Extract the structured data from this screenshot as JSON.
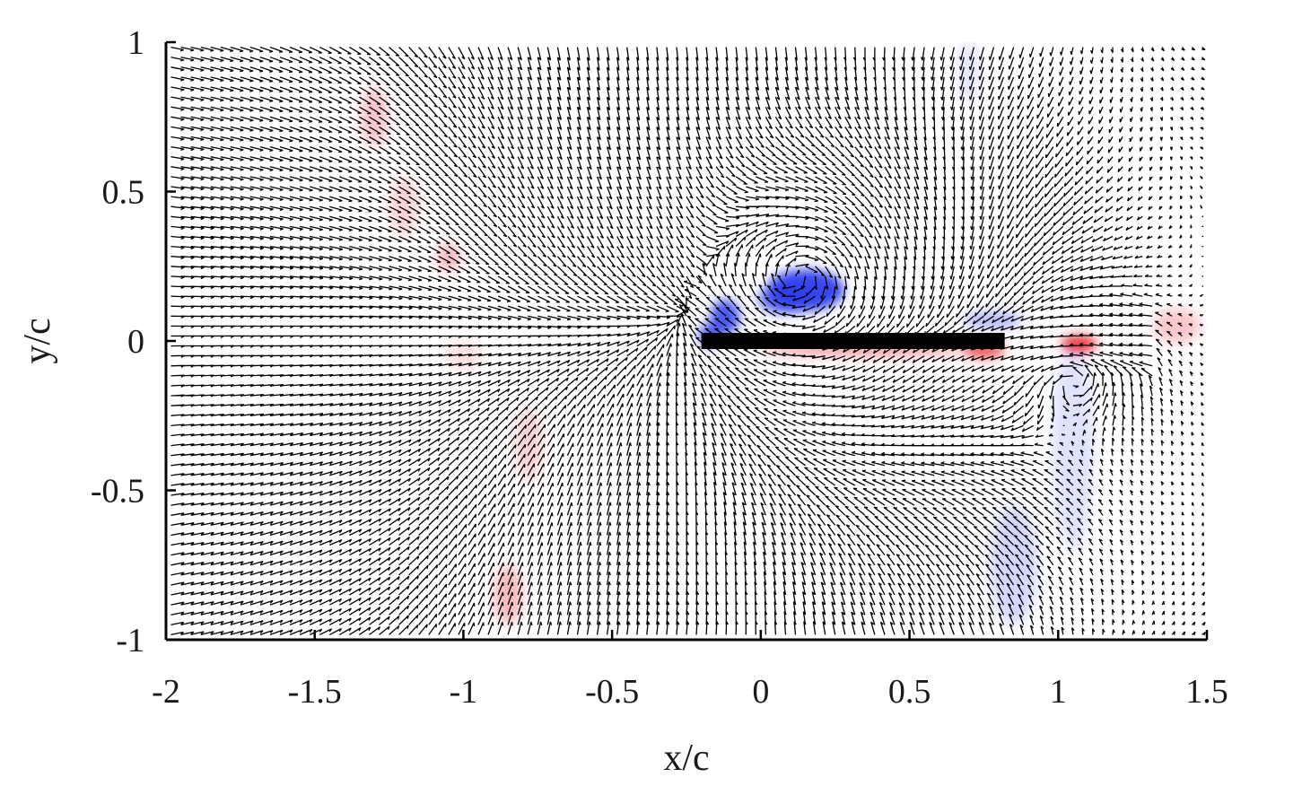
{
  "chart_data": {
    "type": "vector-field",
    "title": "",
    "xlabel": "x/c",
    "ylabel": "y/c",
    "xlim": [
      -2,
      1.5
    ],
    "ylim": [
      -1,
      1
    ],
    "x_ticks": [
      -2,
      -1.5,
      -1,
      -0.5,
      0,
      0.5,
      1,
      1.5
    ],
    "y_ticks": [
      -1,
      -0.5,
      0,
      0.5,
      1
    ],
    "x_tick_labels": [
      "-2",
      "-1.5",
      "-1",
      "-0.5",
      "0",
      "0.5",
      "1",
      "1.5"
    ],
    "y_tick_labels": [
      "-1",
      "-0.5",
      "0",
      "0.5",
      "1"
    ],
    "grid": false,
    "plate": {
      "x": [
        -0.2,
        0.82
      ],
      "y": 0
    },
    "vortex_core": {
      "x": 0.15,
      "y": 0.17
    },
    "vorticity_colors": {
      "positive": "#e8262a",
      "negative": "#2a3cf0",
      "background": "#ffffff"
    },
    "vorticity_regions": [
      {
        "sign": "negative",
        "x": 0.15,
        "y": 0.17,
        "rx": 0.13,
        "ry": 0.07,
        "strength": 0.95
      },
      {
        "sign": "negative",
        "x": 0.08,
        "y": 0.14,
        "rx": 0.09,
        "ry": 0.05,
        "strength": 0.7
      },
      {
        "sign": "negative",
        "x": -0.12,
        "y": 0.08,
        "rx": 0.05,
        "ry": 0.06,
        "strength": 0.85
      },
      {
        "sign": "negative",
        "x": -0.17,
        "y": 0.02,
        "rx": 0.04,
        "ry": 0.04,
        "strength": 0.8
      },
      {
        "sign": "negative",
        "x": 0.78,
        "y": 0.07,
        "rx": 0.1,
        "ry": 0.03,
        "strength": 0.35
      },
      {
        "sign": "negative",
        "x": 1.05,
        "y": -0.35,
        "rx": 0.07,
        "ry": 0.35,
        "strength": 0.15
      },
      {
        "sign": "negative",
        "x": 0.85,
        "y": -0.75,
        "rx": 0.08,
        "ry": 0.2,
        "strength": 0.2
      },
      {
        "sign": "negative",
        "x": 0.7,
        "y": 0.9,
        "rx": 0.04,
        "ry": 0.1,
        "strength": 0.12
      },
      {
        "sign": "positive",
        "x": 0.35,
        "y": -0.03,
        "rx": 0.35,
        "ry": 0.02,
        "strength": 0.45
      },
      {
        "sign": "positive",
        "x": 0.75,
        "y": -0.03,
        "rx": 0.07,
        "ry": 0.03,
        "strength": 0.75
      },
      {
        "sign": "positive",
        "x": 1.07,
        "y": -0.01,
        "rx": 0.06,
        "ry": 0.03,
        "strength": 0.9
      },
      {
        "sign": "positive",
        "x": 1.4,
        "y": 0.05,
        "rx": 0.08,
        "ry": 0.06,
        "strength": 0.25
      },
      {
        "sign": "positive",
        "x": -1.3,
        "y": 0.75,
        "rx": 0.05,
        "ry": 0.1,
        "strength": 0.25
      },
      {
        "sign": "positive",
        "x": -1.2,
        "y": 0.45,
        "rx": 0.05,
        "ry": 0.1,
        "strength": 0.2
      },
      {
        "sign": "positive",
        "x": -1.05,
        "y": 0.28,
        "rx": 0.04,
        "ry": 0.05,
        "strength": 0.3
      },
      {
        "sign": "positive",
        "x": -0.78,
        "y": -0.35,
        "rx": 0.05,
        "ry": 0.12,
        "strength": 0.2
      },
      {
        "sign": "positive",
        "x": -0.85,
        "y": -0.85,
        "rx": 0.05,
        "ry": 0.1,
        "strength": 0.3
      },
      {
        "sign": "positive",
        "x": -1.0,
        "y": -0.05,
        "rx": 0.06,
        "ry": 0.05,
        "strength": 0.15
      }
    ]
  }
}
